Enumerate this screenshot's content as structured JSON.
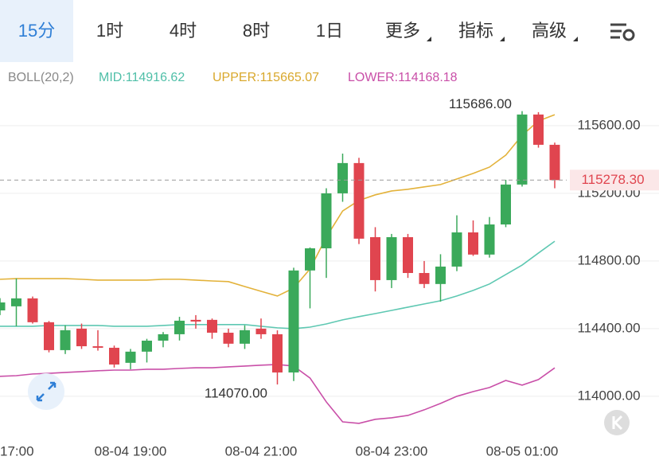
{
  "tabs": [
    "15分",
    "1时",
    "4时",
    "8时",
    "1日",
    "更多",
    "指标",
    "高级"
  ],
  "indicator_legend": [
    "BOLL(20,2)",
    "MID:114916.62",
    "UPPER:115665.07",
    "LOWER:114168.18"
  ],
  "chart_data": {
    "type": "candlestick",
    "categories": [
      "17:00",
      null,
      null,
      null,
      null,
      null,
      null,
      null,
      "08-04 19:00",
      null,
      null,
      null,
      null,
      null,
      null,
      null,
      "08-04 21:00",
      null,
      null,
      null,
      null,
      null,
      null,
      null,
      "08-04 23:00",
      null,
      null,
      null,
      null,
      null,
      null,
      null,
      "08-05 01:00",
      null,
      null
    ],
    "open": [
      114508,
      114532,
      114579,
      114438,
      114273,
      114400,
      114296,
      114287,
      114198,
      114264,
      114329,
      114367,
      114452,
      114452,
      114376,
      114311,
      114400,
      114367,
      114141,
      114744,
      114875,
      115200,
      115379,
      114941,
      114687,
      114941,
      114729,
      114664,
      114767,
      114969,
      114838,
      115016,
      115252,
      115666,
      115487
    ],
    "high": [
      114580,
      114697,
      114590,
      114445,
      114420,
      114430,
      114391,
      114300,
      114280,
      114340,
      114380,
      114470,
      114480,
      114460,
      114400,
      114420,
      114460,
      114390,
      114760,
      114880,
      115230,
      115435,
      115410,
      115000,
      114960,
      114960,
      114800,
      114840,
      115070,
      115040,
      115060,
      115280,
      115686,
      115680,
      115500
    ],
    "low": [
      114480,
      114414,
      114430,
      114260,
      114250,
      114280,
      114270,
      114170,
      114160,
      114200,
      114290,
      114330,
      114400,
      114340,
      114290,
      114280,
      114340,
      114070,
      114090,
      114520,
      114700,
      115150,
      114900,
      114620,
      114640,
      114700,
      114640,
      114560,
      114740,
      114830,
      114820,
      115000,
      115240,
      115470,
      115230
    ],
    "close": [
      114555,
      114579,
      114438,
      114273,
      114391,
      114296,
      114287,
      114188,
      114264,
      114329,
      114367,
      114447,
      114442,
      114376,
      114311,
      114391,
      114367,
      114141,
      114744,
      114875,
      115200,
      115379,
      114932,
      114687,
      114941,
      114729,
      114664,
      114767,
      114969,
      114838,
      115016,
      115252,
      115666,
      115487,
      115278
    ],
    "up_color": "#3aa95a",
    "down_color": "#e0454f",
    "series": [
      {
        "color": "#5ec8b2",
        "values": [
          114414,
          114414,
          114414,
          114419,
          114419,
          114419,
          114419,
          114414,
          114414,
          114414,
          114419,
          114424,
          114424,
          114424,
          114424,
          114424,
          114414,
          114405,
          114400,
          114409,
          114428,
          114452,
          114471,
          114489,
          114508,
          114527,
          114546,
          114565,
          114593,
          114626,
          114664,
          114720,
          114776,
          114847,
          114916.62
        ]
      },
      {
        "color": "#e3b23a",
        "values": [
          114692,
          114696,
          114696,
          114696,
          114696,
          114692,
          114687,
          114687,
          114687,
          114687,
          114692,
          114692,
          114687,
          114682,
          114678,
          114649,
          114621,
          114593,
          114640,
          114753,
          114941,
          115096,
          115158,
          115191,
          115214,
          115224,
          115238,
          115252,
          115285,
          115318,
          115355,
          115426,
          115543,
          115628,
          115665.07
        ]
      },
      {
        "color": "#c94fa8",
        "values": [
          114118,
          114122,
          114132,
          114136,
          114141,
          114146,
          114151,
          114155,
          114155,
          114160,
          114160,
          114165,
          114169,
          114169,
          114174,
          114179,
          114184,
          114188,
          114179,
          114108,
          113967,
          113849,
          113840,
          113864,
          113873,
          113887,
          113920,
          113958,
          114000,
          114028,
          114052,
          114094,
          114066,
          114099,
          114168.18
        ]
      }
    ],
    "ylim": [
      113755,
      115976
    ],
    "yticks": [
      {
        "value": 114000,
        "label": "114000.00"
      },
      {
        "value": 114400,
        "label": "114400.00"
      },
      {
        "value": 114800,
        "label": "114800.00"
      },
      {
        "value": 115200,
        "label": "115200.00"
      },
      {
        "value": 115600,
        "label": "115600.00"
      }
    ],
    "grid": true,
    "annotations": [
      {
        "value": 115686,
        "label": "115686.00"
      },
      {
        "value": 114070,
        "label": "114070.00"
      }
    ],
    "current_price": {
      "value": 115278.3,
      "label": "115278.30"
    }
  }
}
